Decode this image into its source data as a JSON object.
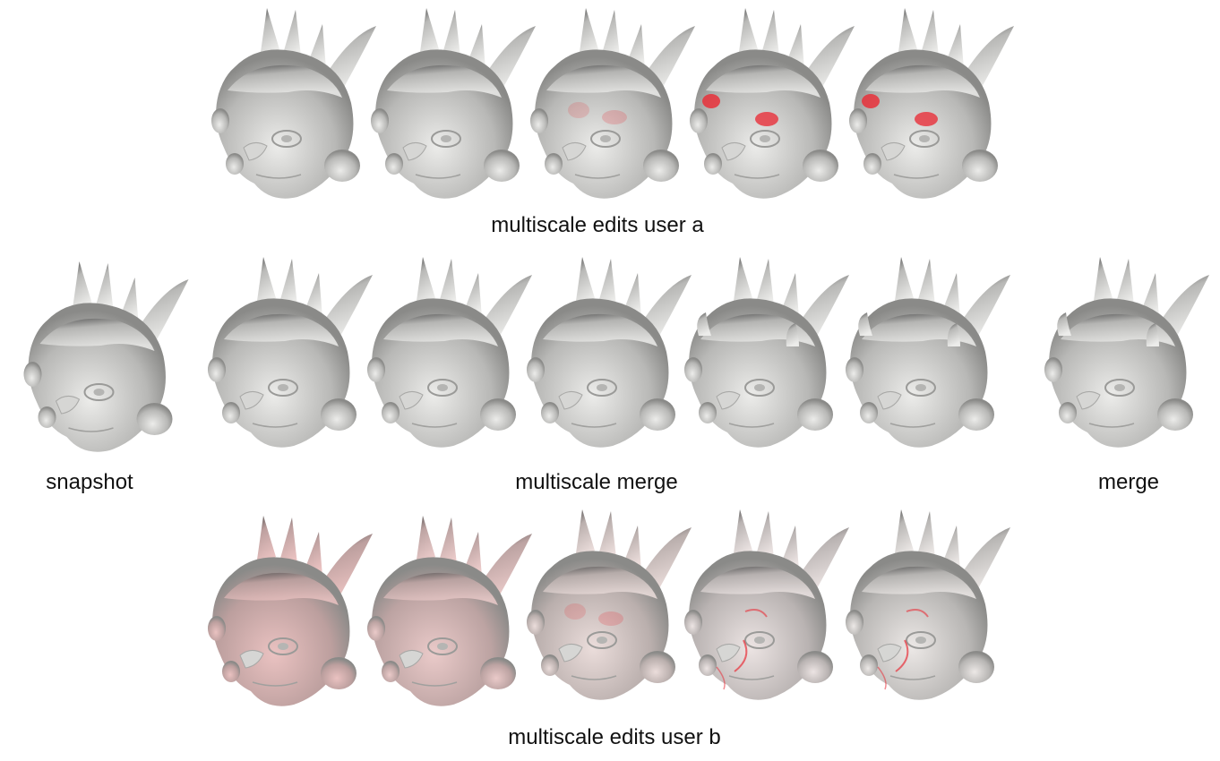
{
  "captions": {
    "row_a": "multiscale edits user a",
    "snapshot": "snapshot",
    "merge_multiscale": "multiscale merge",
    "merge": "merge",
    "row_b": "multiscale edits user b"
  },
  "colors": {
    "background": "#ffffff",
    "mesh_light": "#ececea",
    "mesh_dark": "#4a4a4a",
    "edit_highlight": "#e8303a",
    "tint_user_b": "#e8a0a0"
  },
  "figures": {
    "row_a": [
      {
        "name": "user-a-edit-1",
        "red": "none",
        "rough": 0.3
      },
      {
        "name": "user-a-edit-2",
        "red": "none",
        "rough": 0.4
      },
      {
        "name": "user-a-edit-3",
        "red": "faint",
        "rough": 0.5
      },
      {
        "name": "user-a-edit-4",
        "red": "strong",
        "rough": 0.6
      },
      {
        "name": "user-a-edit-5",
        "red": "strong",
        "rough": 0.7
      }
    ],
    "row_mid": [
      {
        "name": "snapshot-mesh",
        "red": "none",
        "rough": 0.2
      },
      {
        "name": "multiscale-merge-1",
        "red": "none",
        "rough": 0.8,
        "horns": false
      },
      {
        "name": "multiscale-merge-2",
        "red": "none",
        "rough": 0.8,
        "horns": false
      },
      {
        "name": "multiscale-merge-3",
        "red": "none",
        "rough": 0.7,
        "horns": false
      },
      {
        "name": "multiscale-merge-4",
        "red": "none",
        "rough": 0.6,
        "horns": true
      },
      {
        "name": "multiscale-merge-5",
        "red": "none",
        "rough": 0.5,
        "horns": true
      },
      {
        "name": "merge-mesh",
        "red": "none",
        "rough": 0.6,
        "horns": true
      }
    ],
    "row_b": [
      {
        "name": "user-b-edit-1",
        "tint": 0.55,
        "red": "none"
      },
      {
        "name": "user-b-edit-2",
        "tint": 0.45,
        "red": "none"
      },
      {
        "name": "user-b-edit-3",
        "tint": 0.2,
        "red": "faint"
      },
      {
        "name": "user-b-edit-4",
        "tint": 0.1,
        "red": "lines"
      },
      {
        "name": "user-b-edit-5",
        "tint": 0.05,
        "red": "lines"
      }
    ]
  }
}
